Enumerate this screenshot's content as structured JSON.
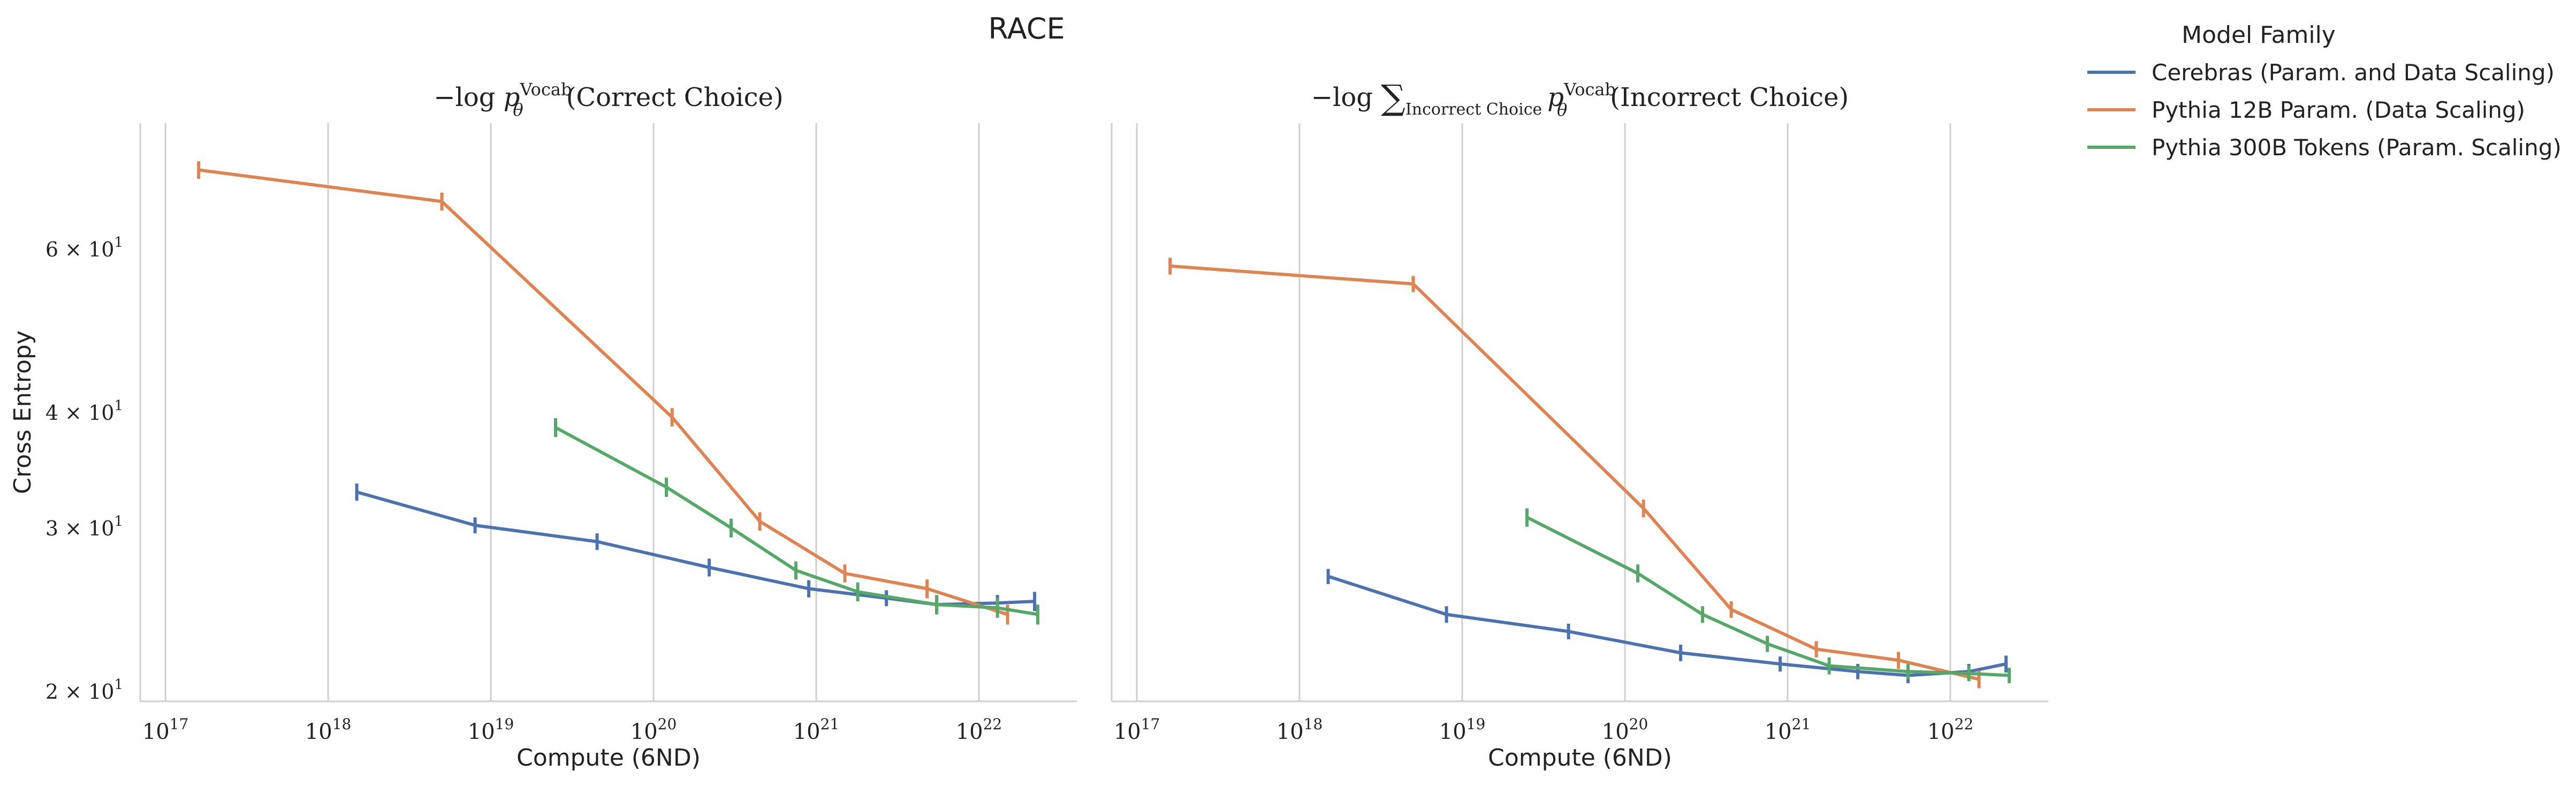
{
  "figure": {
    "suptitle": "RACE",
    "legend_title": "Model Family"
  },
  "chart_data": [
    {
      "type": "line",
      "title": "−log pθVocab(Correct Choice)",
      "title_parts": {
        "prefix": "−log ",
        "p": "p",
        "sup": "Vocab",
        "sub": "θ",
        "suffix": "(Correct Choice)"
      },
      "xlabel": "Compute (6ND)",
      "ylabel": "Cross Entropy",
      "xscale": "log",
      "yscale": "log",
      "xlim": [
        7e+16,
        4e+22
      ],
      "ylim": [
        19.5,
        82
      ],
      "xticks": [
        1e+17,
        1e+18,
        1e+19,
        1e+20,
        1e+21,
        1e+22
      ],
      "xtick_labels": [
        {
          "base": "10",
          "exp": "17"
        },
        {
          "base": "10",
          "exp": "18"
        },
        {
          "base": "10",
          "exp": "19"
        },
        {
          "base": "10",
          "exp": "20"
        },
        {
          "base": "10",
          "exp": "21"
        },
        {
          "base": "10",
          "exp": "22"
        }
      ],
      "yticks": [
        20,
        30,
        40,
        60
      ],
      "ytick_labels": [
        "2 × 10¹",
        "3 × 10¹",
        "4 × 10¹",
        "6 × 10¹"
      ],
      "ytick_parts": [
        {
          "coef": "2 × 10",
          "exp": "1"
        },
        {
          "coef": "3 × 10",
          "exp": "1"
        },
        {
          "coef": "4 × 10",
          "exp": "1"
        },
        {
          "coef": "6 × 10",
          "exp": "1"
        }
      ],
      "grid": "x-major",
      "series": [
        {
          "name": "Cerebras (Param. and Data Scaling)",
          "color": "#4c72b0",
          "x": [
            1.5e+18,
            8e+18,
            4.5e+19,
            2.2e+20,
            9e+20,
            2.7e+21,
            5.5e+21,
            1.3e+22,
            2.2e+22
          ],
          "y": [
            32.8,
            30.2,
            29.0,
            27.2,
            25.8,
            25.2,
            24.8,
            24.9,
            25.0
          ],
          "err": [
            0.7,
            0.6,
            0.6,
            0.6,
            0.55,
            0.5,
            0.5,
            0.5,
            0.6
          ]
        },
        {
          "name": "Pythia 12B Param. (Data Scaling)",
          "color": "#dd8452",
          "x": [
            1.6e+17,
            5e+18,
            1.3e+20,
            4.5e+20,
            1.5e+21,
            4.8e+21,
            1.5e+22
          ],
          "y": [
            73.0,
            67.5,
            39.5,
            30.5,
            26.8,
            25.8,
            24.2
          ],
          "err": [
            1.6,
            1.5,
            0.9,
            0.7,
            0.6,
            0.6,
            0.6
          ]
        },
        {
          "name": "Pythia 300B Tokens (Param. Scaling)",
          "color": "#55a868",
          "x": [
            2.5e+19,
            1.2e+20,
            3e+20,
            7.5e+20,
            1.8e+21,
            5.5e+21,
            1.3e+22,
            2.3e+22
          ],
          "y": [
            38.5,
            33.2,
            30.0,
            27.0,
            25.6,
            24.8,
            24.6,
            24.2
          ],
          "err": [
            0.9,
            0.8,
            0.7,
            0.6,
            0.6,
            0.6,
            0.6,
            0.6
          ]
        }
      ]
    },
    {
      "type": "line",
      "title": "−log ∑Incorrect Choice pθVocab(Incorrect Choice)",
      "title_parts": {
        "prefix": "−log ",
        "sum": "∑",
        "sum_sub": "Incorrect Choice",
        "p": "p",
        "sup": "Vocab",
        "sub": "θ",
        "suffix": "(Incorrect Choice)"
      },
      "xlabel": "Compute (6ND)",
      "ylabel": "",
      "xscale": "log",
      "yscale": "log",
      "xlim": [
        7e+16,
        4e+22
      ],
      "ylim": [
        19.5,
        82
      ],
      "xticks": [
        1e+17,
        1e+18,
        1e+19,
        1e+20,
        1e+21,
        1e+22
      ],
      "xtick_labels": [
        {
          "base": "10",
          "exp": "17"
        },
        {
          "base": "10",
          "exp": "18"
        },
        {
          "base": "10",
          "exp": "19"
        },
        {
          "base": "10",
          "exp": "20"
        },
        {
          "base": "10",
          "exp": "21"
        },
        {
          "base": "10",
          "exp": "22"
        }
      ],
      "yticks": [],
      "ytick_labels": [],
      "ytick_parts": [],
      "grid": "x-major",
      "series": [
        {
          "name": "Cerebras (Param. and Data Scaling)",
          "color": "#4c72b0",
          "x": [
            1.5e+18,
            8e+18,
            4.5e+19,
            2.2e+20,
            9e+20,
            2.7e+21,
            5.5e+21,
            1.3e+22,
            2.2e+22
          ],
          "y": [
            26.6,
            24.2,
            23.2,
            22.0,
            21.4,
            21.0,
            20.8,
            21.0,
            21.4
          ],
          "err": [
            0.5,
            0.5,
            0.45,
            0.45,
            0.4,
            0.4,
            0.4,
            0.4,
            0.45
          ]
        },
        {
          "name": "Pythia 12B Param. (Data Scaling)",
          "color": "#dd8452",
          "x": [
            1.6e+17,
            5e+18,
            1.3e+20,
            4.5e+20,
            1.5e+21,
            4.8e+21,
            1.5e+22
          ],
          "y": [
            57.5,
            55.0,
            31.5,
            24.5,
            22.2,
            21.6,
            20.6
          ],
          "err": [
            1.2,
            1.1,
            0.7,
            0.5,
            0.45,
            0.45,
            0.45
          ]
        },
        {
          "name": "Pythia 300B Tokens (Param. Scaling)",
          "color": "#55a868",
          "x": [
            2.5e+19,
            1.2e+20,
            3e+20,
            7.5e+20,
            1.8e+21,
            5.5e+21,
            1.3e+22,
            2.3e+22
          ],
          "y": [
            30.8,
            26.8,
            24.2,
            22.5,
            21.3,
            21.0,
            20.9,
            20.8
          ],
          "err": [
            0.7,
            0.6,
            0.5,
            0.45,
            0.45,
            0.4,
            0.4,
            0.4
          ]
        }
      ]
    }
  ]
}
